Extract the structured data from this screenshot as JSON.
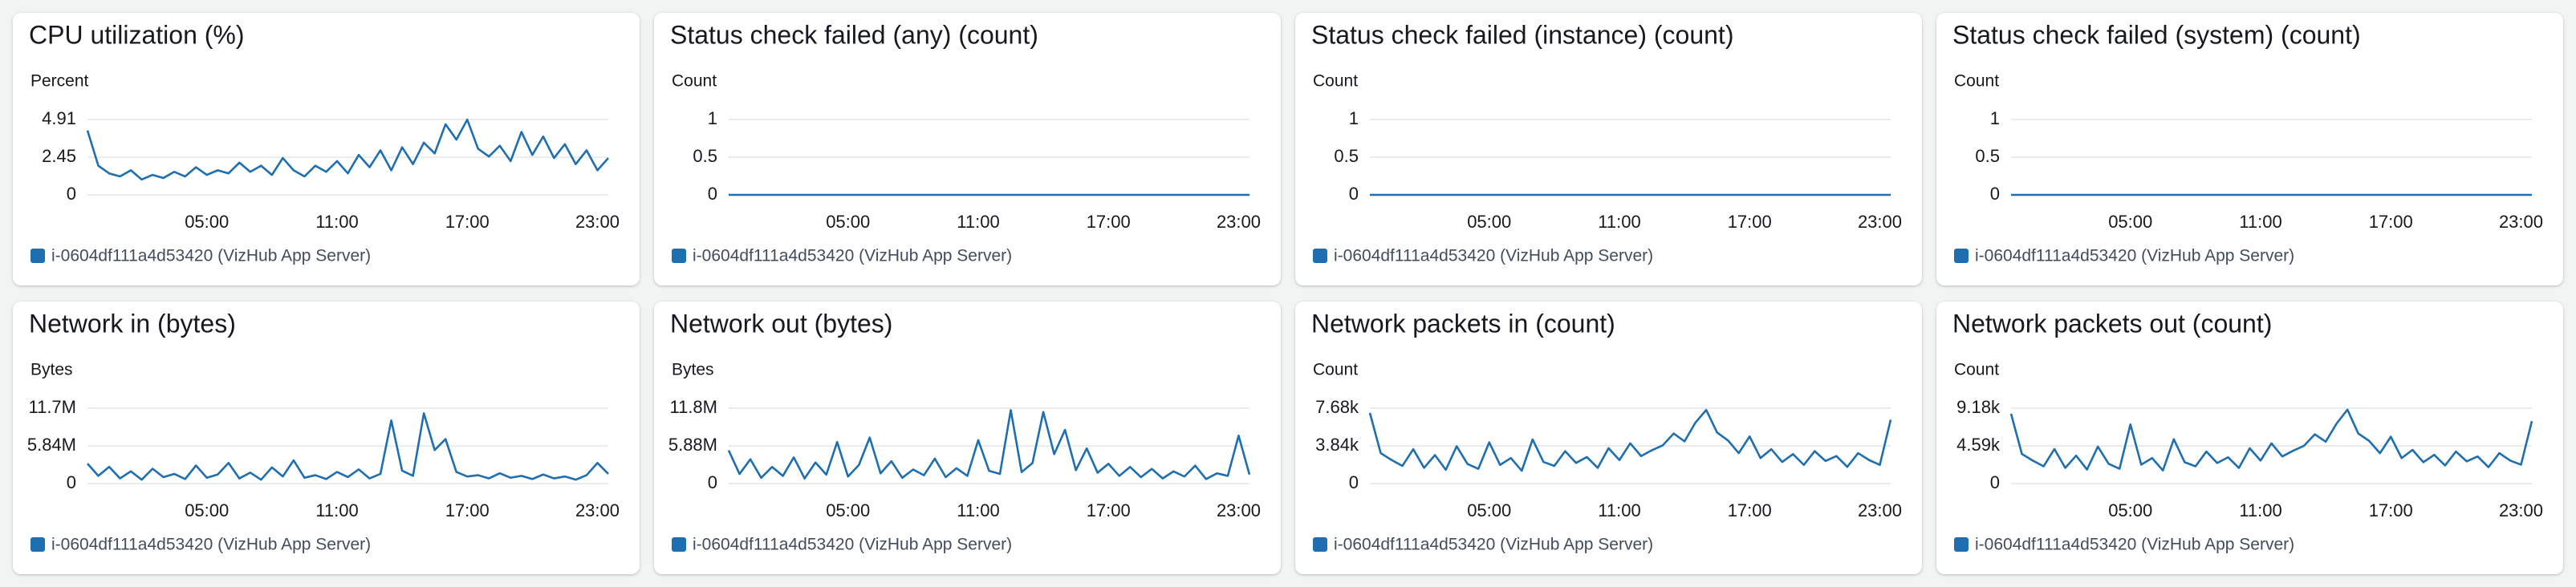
{
  "chart_data": [
    {
      "type": "line",
      "title": "CPU utilization (%)",
      "y_label": "Percent",
      "x": [
        -0.5,
        0,
        0.5,
        1,
        1.5,
        2,
        2.5,
        3,
        3.5,
        4,
        4.5,
        5,
        5.5,
        6,
        6.5,
        7,
        7.5,
        8,
        8.5,
        9,
        9.5,
        10,
        10.5,
        11,
        11.5,
        12,
        12.5,
        13,
        13.5,
        14,
        14.5,
        15,
        15.5,
        16,
        16.5,
        17,
        17.5,
        18,
        18.5,
        19,
        19.5,
        20,
        20.5,
        21,
        21.5,
        22,
        22.5,
        23,
        23.5
      ],
      "series": [
        {
          "name": "i-0604df111a4d53420 (VizHub App Server)",
          "color": "#1f6fb0",
          "values": [
            4.2,
            1.9,
            1.4,
            1.2,
            1.6,
            1.0,
            1.3,
            1.1,
            1.5,
            1.2,
            1.8,
            1.3,
            1.6,
            1.4,
            2.1,
            1.5,
            1.9,
            1.3,
            2.4,
            1.6,
            1.2,
            1.9,
            1.5,
            2.2,
            1.4,
            2.6,
            1.8,
            2.9,
            1.6,
            3.1,
            2.0,
            3.4,
            2.7,
            4.6,
            3.6,
            4.9,
            3.0,
            2.5,
            3.2,
            2.2,
            4.1,
            2.6,
            3.8,
            2.4,
            3.3,
            2.0,
            2.9,
            1.6,
            2.4
          ]
        }
      ],
      "xlim": [
        -0.5,
        23.5
      ],
      "xticks": [
        {
          "value": 5,
          "label": "05:00"
        },
        {
          "value": 11,
          "label": "11:00"
        },
        {
          "value": 17,
          "label": "17:00"
        },
        {
          "value": 23,
          "label": "23:00"
        }
      ],
      "ylim": [
        0,
        4.91
      ],
      "yticks": [
        0,
        2.45,
        4.91
      ],
      "grid": true
    },
    {
      "type": "line",
      "title": "Status check failed (any) (count)",
      "y_label": "Count",
      "x": [
        -0.5,
        23.5
      ],
      "series": [
        {
          "name": "i-0604df111a4d53420 (VizHub App Server)",
          "color": "#1f6fb0",
          "values": [
            0,
            0
          ]
        }
      ],
      "xlim": [
        -0.5,
        23.5
      ],
      "xticks": [
        {
          "value": 5,
          "label": "05:00"
        },
        {
          "value": 11,
          "label": "11:00"
        },
        {
          "value": 17,
          "label": "17:00"
        },
        {
          "value": 23,
          "label": "23:00"
        }
      ],
      "ylim": [
        0,
        1
      ],
      "yticks": [
        0,
        0.5,
        1
      ],
      "grid": true
    },
    {
      "type": "line",
      "title": "Status check failed (instance) (count)",
      "y_label": "Count",
      "x": [
        -0.5,
        23.5
      ],
      "series": [
        {
          "name": "i-0604df111a4d53420 (VizHub App Server)",
          "color": "#1f6fb0",
          "values": [
            0,
            0
          ]
        }
      ],
      "xlim": [
        -0.5,
        23.5
      ],
      "xticks": [
        {
          "value": 5,
          "label": "05:00"
        },
        {
          "value": 11,
          "label": "11:00"
        },
        {
          "value": 17,
          "label": "17:00"
        },
        {
          "value": 23,
          "label": "23:00"
        }
      ],
      "ylim": [
        0,
        1
      ],
      "yticks": [
        0,
        0.5,
        1
      ],
      "grid": true
    },
    {
      "type": "line",
      "title": "Status check failed (system) (count)",
      "y_label": "Count",
      "x": [
        -0.5,
        23.5
      ],
      "series": [
        {
          "name": "i-0604df111a4d53420 (VizHub App Server)",
          "color": "#1f6fb0",
          "values": [
            0,
            0
          ]
        }
      ],
      "xlim": [
        -0.5,
        23.5
      ],
      "xticks": [
        {
          "value": 5,
          "label": "05:00"
        },
        {
          "value": 11,
          "label": "11:00"
        },
        {
          "value": 17,
          "label": "17:00"
        },
        {
          "value": 23,
          "label": "23:00"
        }
      ],
      "ylim": [
        0,
        1
      ],
      "yticks": [
        0,
        0.5,
        1
      ],
      "grid": true
    },
    {
      "type": "line",
      "title": "Network in (bytes)",
      "y_label": "Bytes",
      "x": [
        -0.5,
        0,
        0.5,
        1,
        1.5,
        2,
        2.5,
        3,
        3.5,
        4,
        4.5,
        5,
        5.5,
        6,
        6.5,
        7,
        7.5,
        8,
        8.5,
        9,
        9.5,
        10,
        10.5,
        11,
        11.5,
        12,
        12.5,
        13,
        13.5,
        14,
        14.5,
        15,
        15.5,
        16,
        16.5,
        17,
        17.5,
        18,
        18.5,
        19,
        19.5,
        20,
        20.5,
        21,
        21.5,
        22,
        22.5,
        23,
        23.5
      ],
      "series": [
        {
          "name": "i-0604df111a4d53420 (VizHub App Server)",
          "color": "#1f6fb0",
          "values": [
            3100000,
            1200000,
            2600000,
            800000,
            1900000,
            600000,
            2300000,
            1000000,
            1500000,
            700000,
            2800000,
            900000,
            1400000,
            3200000,
            800000,
            1700000,
            600000,
            2500000,
            1100000,
            3600000,
            900000,
            1300000,
            700000,
            1800000,
            1000000,
            2200000,
            800000,
            1500000,
            9800000,
            2000000,
            1200000,
            10900000,
            5200000,
            6900000,
            1800000,
            1100000,
            1300000,
            800000,
            1600000,
            900000,
            1200000,
            700000,
            1400000,
            800000,
            1100000,
            600000,
            1300000,
            3200000,
            1500000
          ]
        }
      ],
      "xlim": [
        -0.5,
        23.5
      ],
      "xticks": [
        {
          "value": 5,
          "label": "05:00"
        },
        {
          "value": 11,
          "label": "11:00"
        },
        {
          "value": 17,
          "label": "17:00"
        },
        {
          "value": 23,
          "label": "23:00"
        }
      ],
      "ylim": [
        0,
        11700000
      ],
      "yticks": [
        0,
        {
          "value": 5840000,
          "label": "5.84M"
        },
        {
          "value": 11700000,
          "label": "11.7M"
        }
      ],
      "grid": true
    },
    {
      "type": "line",
      "title": "Network out (bytes)",
      "y_label": "Bytes",
      "x": [
        -0.5,
        0,
        0.5,
        1,
        1.5,
        2,
        2.5,
        3,
        3.5,
        4,
        4.5,
        5,
        5.5,
        6,
        6.5,
        7,
        7.5,
        8,
        8.5,
        9,
        9.5,
        10,
        10.5,
        11,
        11.5,
        12,
        12.5,
        13,
        13.5,
        14,
        14.5,
        15,
        15.5,
        16,
        16.5,
        17,
        17.5,
        18,
        18.5,
        19,
        19.5,
        20,
        20.5,
        21,
        21.5,
        22,
        22.5,
        23,
        23.5
      ],
      "series": [
        {
          "name": "i-0604df111a4d53420 (VizHub App Server)",
          "color": "#1f6fb0",
          "values": [
            5200000,
            1500000,
            3800000,
            900000,
            2600000,
            1200000,
            4100000,
            800000,
            3300000,
            1400000,
            6500000,
            1100000,
            2900000,
            7200000,
            1600000,
            3500000,
            900000,
            2200000,
            1300000,
            3900000,
            1000000,
            2400000,
            1200000,
            6800000,
            2000000,
            1500000,
            11500000,
            1800000,
            3200000,
            11200000,
            4600000,
            8400000,
            2100000,
            5500000,
            1700000,
            3100000,
            1200000,
            2600000,
            1000000,
            2300000,
            800000,
            1900000,
            1100000,
            2800000,
            700000,
            1600000,
            1200000,
            7500000,
            1400000
          ]
        }
      ],
      "xlim": [
        -0.5,
        23.5
      ],
      "xticks": [
        {
          "value": 5,
          "label": "05:00"
        },
        {
          "value": 11,
          "label": "11:00"
        },
        {
          "value": 17,
          "label": "17:00"
        },
        {
          "value": 23,
          "label": "23:00"
        }
      ],
      "ylim": [
        0,
        11800000
      ],
      "yticks": [
        0,
        {
          "value": 5880000,
          "label": "5.88M"
        },
        {
          "value": 11800000,
          "label": "11.8M"
        }
      ],
      "grid": true
    },
    {
      "type": "line",
      "title": "Network packets in (count)",
      "y_label": "Count",
      "x": [
        -0.5,
        0,
        0.5,
        1,
        1.5,
        2,
        2.5,
        3,
        3.5,
        4,
        4.5,
        5,
        5.5,
        6,
        6.5,
        7,
        7.5,
        8,
        8.5,
        9,
        9.5,
        10,
        10.5,
        11,
        11.5,
        12,
        12.5,
        13,
        13.5,
        14,
        14.5,
        15,
        15.5,
        16,
        16.5,
        17,
        17.5,
        18,
        18.5,
        19,
        19.5,
        20,
        20.5,
        21,
        21.5,
        22,
        22.5,
        23,
        23.5
      ],
      "series": [
        {
          "name": "i-0604df111a4d53420 (VizHub App Server)",
          "color": "#1f6fb0",
          "values": [
            7200,
            3100,
            2400,
            1800,
            3500,
            1600,
            2900,
            1400,
            3800,
            2000,
            1500,
            4200,
            1900,
            2600,
            1300,
            4500,
            2200,
            1800,
            3300,
            2100,
            2700,
            1600,
            3600,
            2400,
            4100,
            2800,
            3400,
            3900,
            5100,
            4300,
            6200,
            7500,
            5200,
            4400,
            3100,
            4800,
            2600,
            3500,
            2200,
            3000,
            1900,
            3300,
            2300,
            2800,
            1700,
            3100,
            2400,
            1900,
            6500
          ]
        }
      ],
      "xlim": [
        -0.5,
        23.5
      ],
      "xticks": [
        {
          "value": 5,
          "label": "05:00"
        },
        {
          "value": 11,
          "label": "11:00"
        },
        {
          "value": 17,
          "label": "17:00"
        },
        {
          "value": 23,
          "label": "23:00"
        }
      ],
      "ylim": [
        0,
        7680
      ],
      "yticks": [
        0,
        {
          "value": 3840,
          "label": "3.84k"
        },
        {
          "value": 7680,
          "label": "7.68k"
        }
      ],
      "grid": true
    },
    {
      "type": "line",
      "title": "Network packets out (count)",
      "y_label": "Count",
      "x": [
        -0.5,
        0,
        0.5,
        1,
        1.5,
        2,
        2.5,
        3,
        3.5,
        4,
        4.5,
        5,
        5.5,
        6,
        6.5,
        7,
        7.5,
        8,
        8.5,
        9,
        9.5,
        10,
        10.5,
        11,
        11.5,
        12,
        12.5,
        13,
        13.5,
        14,
        14.5,
        15,
        15.5,
        16,
        16.5,
        17,
        17.5,
        18,
        18.5,
        19,
        19.5,
        20,
        20.5,
        21,
        21.5,
        22,
        22.5,
        23,
        23.5
      ],
      "series": [
        {
          "name": "i-0604df111a4d53420 (VizHub App Server)",
          "color": "#1f6fb0",
          "values": [
            8500,
            3600,
            2800,
            2100,
            4200,
            1900,
            3400,
            1700,
            4500,
            2400,
            1800,
            7200,
            2300,
            3100,
            1600,
            5400,
            2600,
            2100,
            3900,
            2500,
            3200,
            1900,
            4300,
            2800,
            4900,
            3300,
            4000,
            4600,
            6000,
            5100,
            7300,
            9000,
            6100,
            5200,
            3700,
            5700,
            3100,
            4100,
            2600,
            3500,
            2200,
            3900,
            2700,
            3300,
            2000,
            3700,
            2800,
            2300,
            7600
          ]
        }
      ],
      "xlim": [
        -0.5,
        23.5
      ],
      "xticks": [
        {
          "value": 5,
          "label": "05:00"
        },
        {
          "value": 11,
          "label": "11:00"
        },
        {
          "value": 17,
          "label": "17:00"
        },
        {
          "value": 23,
          "label": "23:00"
        }
      ],
      "ylim": [
        0,
        9180
      ],
      "yticks": [
        0,
        {
          "value": 4590,
          "label": "4.59k"
        },
        {
          "value": 9180,
          "label": "9.18k"
        }
      ],
      "grid": true
    }
  ]
}
